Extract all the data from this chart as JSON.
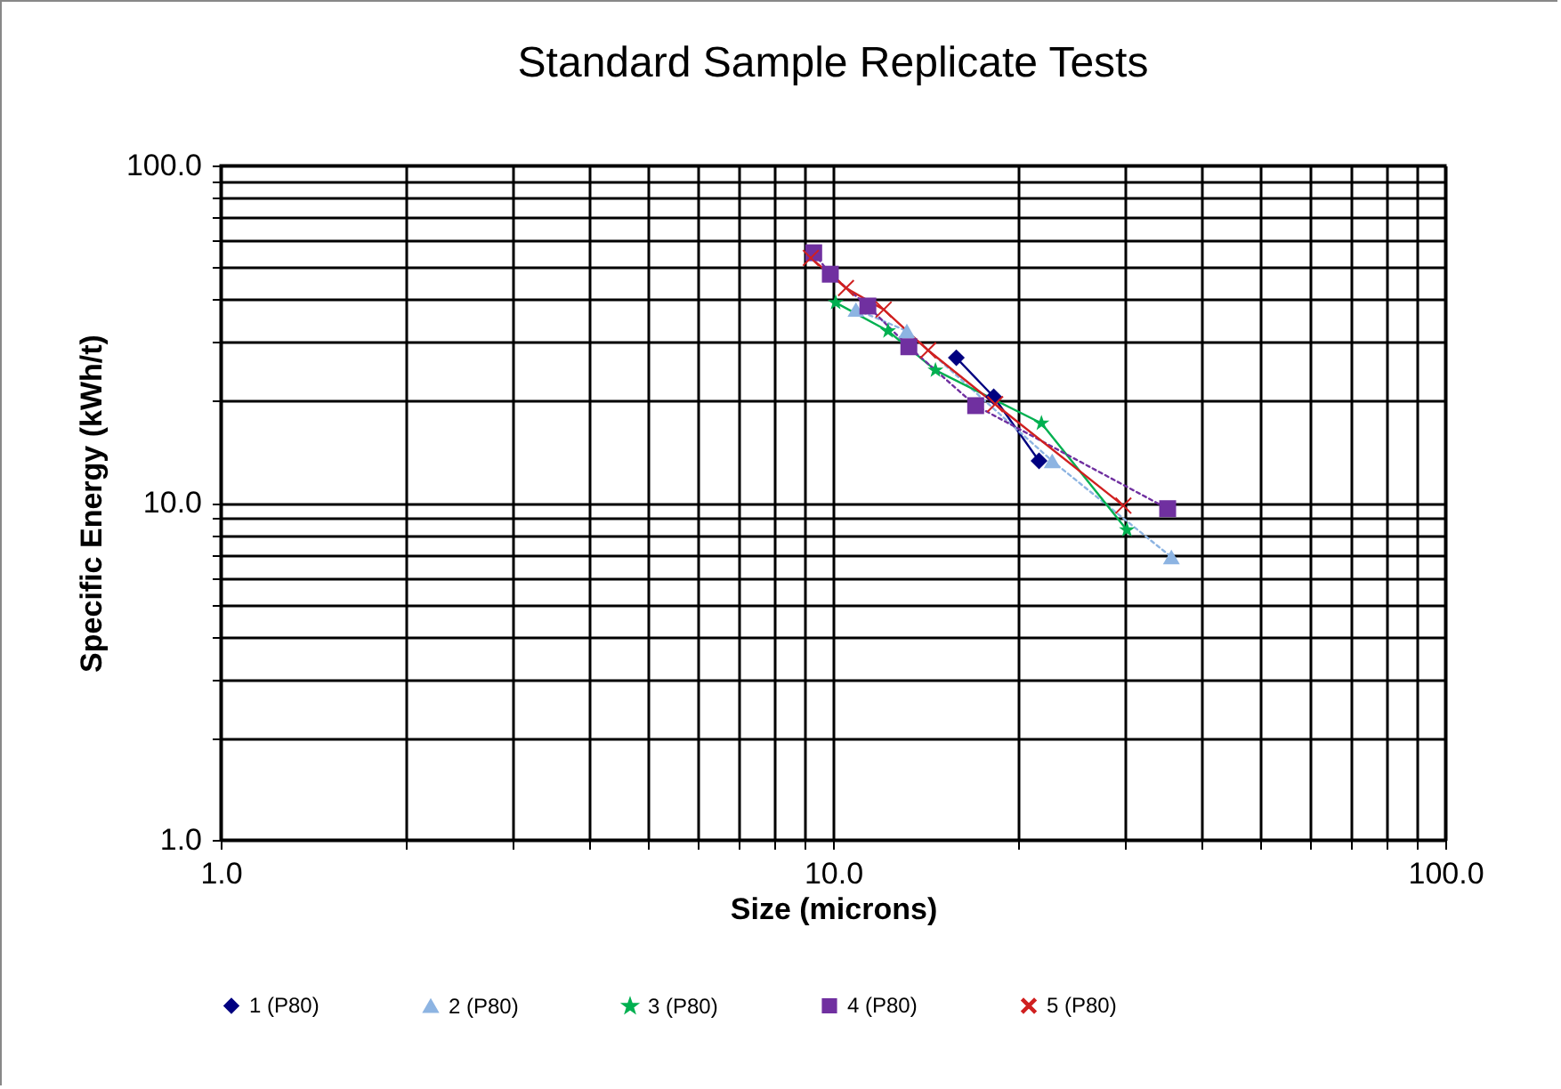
{
  "chart_data": {
    "type": "line",
    "title": "Standard Sample Replicate Tests",
    "xlabel": "Size (microns)",
    "ylabel": "Specific Energy (kWh/t)",
    "log": "xy",
    "grid": true,
    "legend": "bottom",
    "xlim": [
      1,
      100
    ],
    "ylim": [
      1,
      100
    ],
    "xticks": [
      {
        "value": 1,
        "label": "1.0"
      },
      {
        "value": 2,
        "label": null
      },
      {
        "value": 3,
        "label": null
      },
      {
        "value": 4,
        "label": null
      },
      {
        "value": 5,
        "label": null
      },
      {
        "value": 6,
        "label": null
      },
      {
        "value": 7,
        "label": null
      },
      {
        "value": 8,
        "label": null
      },
      {
        "value": 9,
        "label": null
      },
      {
        "value": 10,
        "label": "10.0"
      },
      {
        "value": 20,
        "label": null
      },
      {
        "value": 30,
        "label": null
      },
      {
        "value": 40,
        "label": null
      },
      {
        "value": 50,
        "label": null
      },
      {
        "value": 60,
        "label": null
      },
      {
        "value": 70,
        "label": null
      },
      {
        "value": 80,
        "label": null
      },
      {
        "value": 90,
        "label": null
      },
      {
        "value": 100,
        "label": "100.0"
      }
    ],
    "yticks": [
      {
        "value": 1,
        "label": "1.0"
      },
      {
        "value": 2,
        "label": null
      },
      {
        "value": 3,
        "label": null
      },
      {
        "value": 4,
        "label": null
      },
      {
        "value": 5,
        "label": null
      },
      {
        "value": 6,
        "label": null
      },
      {
        "value": 7,
        "label": null
      },
      {
        "value": 8,
        "label": null
      },
      {
        "value": 9,
        "label": null
      },
      {
        "value": 10,
        "label": "10.0"
      },
      {
        "value": 20,
        "label": null
      },
      {
        "value": 30,
        "label": null
      },
      {
        "value": 40,
        "label": null
      },
      {
        "value": 50,
        "label": null
      },
      {
        "value": 60,
        "label": null
      },
      {
        "value": 70,
        "label": null
      },
      {
        "value": 80,
        "label": null
      },
      {
        "value": 90,
        "label": null
      },
      {
        "value": 100,
        "label": "100.0"
      }
    ],
    "series": [
      {
        "name": "1 (P80)",
        "color": "#000080",
        "marker": "diamond",
        "line_style": "solid",
        "x": [
          15.9,
          18.3,
          21.7
        ],
        "values": [
          26.9,
          20.6,
          13.3
        ]
      },
      {
        "name": "2 (P80)",
        "color": "#8db4e2",
        "marker": "triangle",
        "line_style": "dotted",
        "x": [
          10.9,
          13.2,
          22.8,
          35.7
        ],
        "values": [
          37.4,
          32.3,
          13.3,
          6.9
        ]
      },
      {
        "name": "3 (P80)",
        "color": "#00b050",
        "marker": "star",
        "line_style": "solid",
        "x": [
          10.1,
          12.3,
          14.7,
          21.9,
          30.2
        ],
        "values": [
          39.2,
          32.3,
          24.7,
          17.2,
          8.3
        ]
      },
      {
        "name": "4 (P80)",
        "color": "#7030a0",
        "marker": "square",
        "line_style": "dotted",
        "x": [
          9.3,
          9.9,
          11.4,
          13.3,
          17.1,
          35.2
        ],
        "values": [
          55.1,
          47.6,
          38.3,
          29.0,
          19.4,
          9.6
        ]
      },
      {
        "name": "5 (P80)",
        "color": "#d02020",
        "marker": "cross",
        "line_style": "solid",
        "x": [
          9.2,
          10.5,
          12.1,
          14.3,
          18.4,
          29.8
        ],
        "values": [
          53.2,
          43.3,
          37.4,
          28.3,
          19.6,
          9.8
        ]
      }
    ]
  }
}
